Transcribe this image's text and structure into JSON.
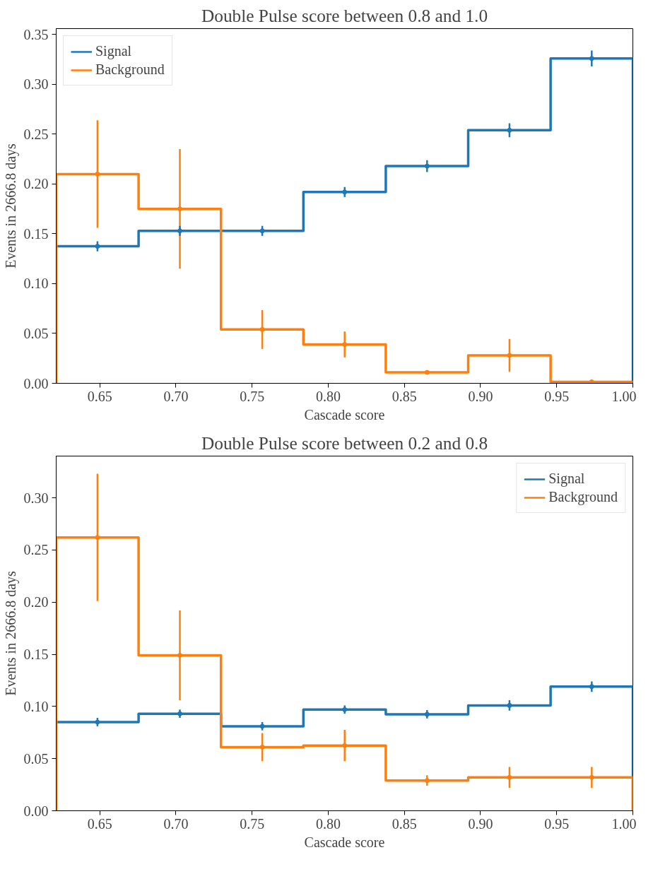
{
  "chart_data": [
    {
      "type": "histogram",
      "title": "Double Pulse score between 0.8 and 1.0",
      "xlabel": "Cascade score",
      "ylabel": "Events in 2666.8 days",
      "bins": [
        0.6214,
        0.6755,
        0.7296,
        0.7837,
        0.8378,
        0.8919,
        0.946,
        1.0
      ],
      "series": [
        {
          "color": "#1f77b4",
          "values": [
            0.1375,
            0.153,
            0.153,
            0.192,
            0.218,
            0.254,
            0.326
          ]
        },
        {
          "color": "#ff7f0e",
          "values": [
            0.21,
            0.175,
            0.054,
            0.039,
            0.011,
            0.028,
            0.0015
          ]
        },
        {
          "type": "scatter",
          "marker": "circle",
          "name": "Signal",
          "color": "#1f77b4",
          "x": [
            0.6485,
            0.7026,
            0.7567,
            0.8108,
            0.8649,
            0.919,
            0.973
          ],
          "values": [
            0.1375,
            0.153,
            0.153,
            0.192,
            0.218,
            0.254,
            0.326
          ],
          "errors": [
            0.005,
            0.005,
            0.005,
            0.005,
            0.006,
            0.007,
            0.008
          ]
        },
        {
          "type": "scatter",
          "marker": "circle",
          "name": "Background",
          "color": "#ff7f0e",
          "x": [
            0.6485,
            0.7026,
            0.7567,
            0.8108,
            0.8649,
            0.919,
            0.973
          ],
          "values": [
            0.21,
            0.175,
            0.054,
            0.039,
            0.011,
            0.028,
            0.0015
          ],
          "errors": [
            0.054,
            0.06,
            0.0195,
            0.013,
            null,
            0.0165,
            null
          ]
        }
      ],
      "xlim": [
        0.6214,
        1.0
      ],
      "ylim": [
        0,
        0.356
      ],
      "xticks": [
        {
          "value": 0.65,
          "label": "0.65"
        },
        {
          "value": 0.7,
          "label": "0.70"
        },
        {
          "value": 0.75,
          "label": "0.75"
        },
        {
          "value": 0.8,
          "label": "0.80"
        },
        {
          "value": 0.85,
          "label": "0.85"
        },
        {
          "value": 0.9,
          "label": "0.90"
        },
        {
          "value": 0.95,
          "label": "0.95"
        },
        {
          "value": 1.0,
          "label": "1.00"
        }
      ],
      "yticks": [
        {
          "value": 0,
          "label": "0.00"
        },
        {
          "value": 0.05,
          "label": "0.05"
        },
        {
          "value": 0.1,
          "label": "0.10"
        },
        {
          "value": 0.15,
          "label": "0.15"
        },
        {
          "value": 0.2,
          "label": "0.20"
        },
        {
          "value": 0.25,
          "label": "0.25"
        },
        {
          "value": 0.3,
          "label": "0.30"
        },
        {
          "value": 0.35,
          "label": "0.35"
        }
      ],
      "legend": "top left",
      "grid": false
    },
    {
      "type": "histogram",
      "title": "Double Pulse score between 0.2 and 0.8",
      "xlabel": "Cascade score",
      "ylabel": "Events in 2666.8 days",
      "bins": [
        0.6214,
        0.6755,
        0.7296,
        0.7837,
        0.8378,
        0.8919,
        0.946,
        1.0
      ],
      "series": [
        {
          "color": "#1f77b4",
          "values": [
            0.085,
            0.093,
            0.081,
            0.097,
            0.0925,
            0.101,
            0.119
          ]
        },
        {
          "color": "#ff7f0e",
          "values": [
            0.262,
            0.149,
            0.061,
            0.0625,
            0.029,
            0.032,
            0.032
          ]
        },
        {
          "type": "scatter",
          "marker": "circle",
          "name": "Signal",
          "color": "#1f77b4",
          "x": [
            0.6485,
            0.7026,
            0.7567,
            0.8108,
            0.8649,
            0.919,
            0.973
          ],
          "values": [
            0.085,
            0.093,
            0.081,
            0.097,
            0.0925,
            0.101,
            0.119
          ],
          "errors": [
            0.004,
            0.004,
            0.004,
            0.004,
            0.004,
            0.005,
            0.005
          ]
        },
        {
          "type": "scatter",
          "marker": "circle",
          "name": "Background",
          "color": "#ff7f0e",
          "x": [
            0.6485,
            0.7026,
            0.7567,
            0.8108,
            0.8649,
            0.919,
            0.973
          ],
          "values": [
            0.262,
            0.149,
            0.061,
            0.0625,
            0.029,
            0.032,
            0.032
          ],
          "errors": [
            0.061,
            0.043,
            0.0135,
            0.015,
            0.005,
            0.01,
            0.01
          ]
        }
      ],
      "xlim": [
        0.6214,
        1.0
      ],
      "ylim": [
        0,
        0.34
      ],
      "xticks": [
        {
          "value": 0.65,
          "label": "0.65"
        },
        {
          "value": 0.7,
          "label": "0.70"
        },
        {
          "value": 0.75,
          "label": "0.75"
        },
        {
          "value": 0.8,
          "label": "0.80"
        },
        {
          "value": 0.85,
          "label": "0.85"
        },
        {
          "value": 0.9,
          "label": "0.90"
        },
        {
          "value": 0.95,
          "label": "0.95"
        },
        {
          "value": 1.0,
          "label": "1.00"
        }
      ],
      "yticks": [
        {
          "value": 0,
          "label": "0.00"
        },
        {
          "value": 0.05,
          "label": "0.05"
        },
        {
          "value": 0.1,
          "label": "0.10"
        },
        {
          "value": 0.15,
          "label": "0.15"
        },
        {
          "value": 0.2,
          "label": "0.20"
        },
        {
          "value": 0.25,
          "label": "0.25"
        },
        {
          "value": 0.3,
          "label": "0.30"
        }
      ],
      "legend": "top right",
      "grid": false
    }
  ]
}
